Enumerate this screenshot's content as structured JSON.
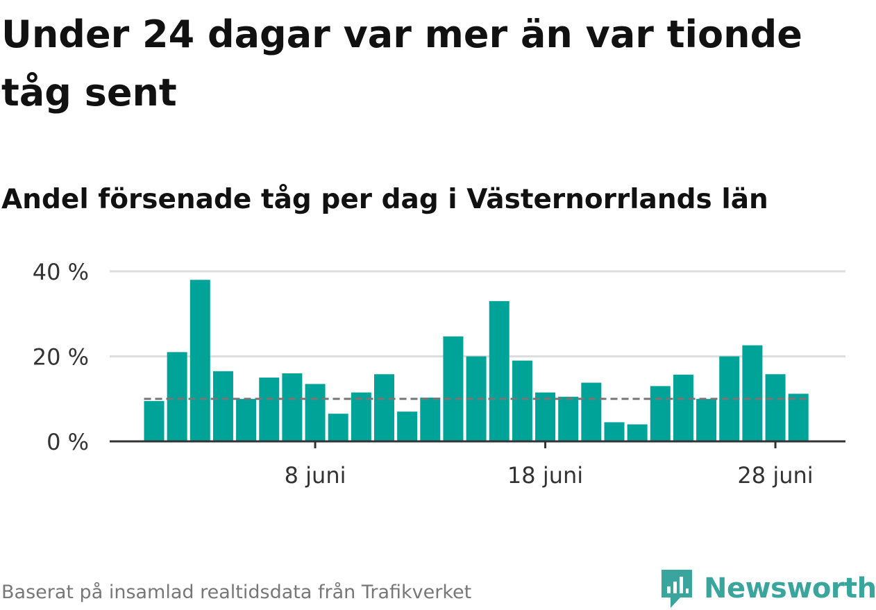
{
  "title": "Under 24 dagar var mer än var tionde tåg sent",
  "subtitle": "Andel försenade tåg per dag i Västernorrlands län",
  "footer": "Baserat på insamlad realtidsdata från Trafikverket",
  "brand": "Newsworthy",
  "colors": {
    "bar": "#00a398",
    "reference": "#777777",
    "grid": "#dddddd",
    "axis": "#333333",
    "brand": "#3aa59d"
  },
  "chart_data": {
    "type": "bar",
    "x": [
      "1 juni",
      "2 juni",
      "3 juni",
      "4 juni",
      "5 juni",
      "6 juni",
      "7 juni",
      "8 juni",
      "9 juni",
      "10 juni",
      "11 juni",
      "12 juni",
      "13 juni",
      "14 juni",
      "15 juni",
      "16 juni",
      "17 juni",
      "18 juni",
      "19 juni",
      "20 juni",
      "21 juni",
      "22 juni",
      "23 juni",
      "24 juni",
      "25 juni",
      "26 juni",
      "27 juni",
      "28 juni",
      "29 juni"
    ],
    "values": [
      9.5,
      21,
      38,
      16.5,
      10,
      15,
      16,
      13.5,
      6.5,
      11.5,
      15.8,
      7,
      10.3,
      24.7,
      20,
      33,
      19,
      11.5,
      10.5,
      13.8,
      4.5,
      4,
      13,
      15.7,
      10,
      20,
      22.6,
      15.8,
      11.2
    ],
    "reference_line": 10,
    "yticks": [
      0,
      20,
      40
    ],
    "ytick_labels": [
      "0 %",
      "20 %",
      "40 %"
    ],
    "xtick_labels": [
      {
        "x": "8 juni",
        "label": "8 juni"
      },
      {
        "x": "18 juni",
        "label": "18 juni"
      },
      {
        "x": "28 juni",
        "label": "28 juni"
      }
    ],
    "ylim": [
      0,
      40
    ],
    "grid": true,
    "legend": false
  }
}
